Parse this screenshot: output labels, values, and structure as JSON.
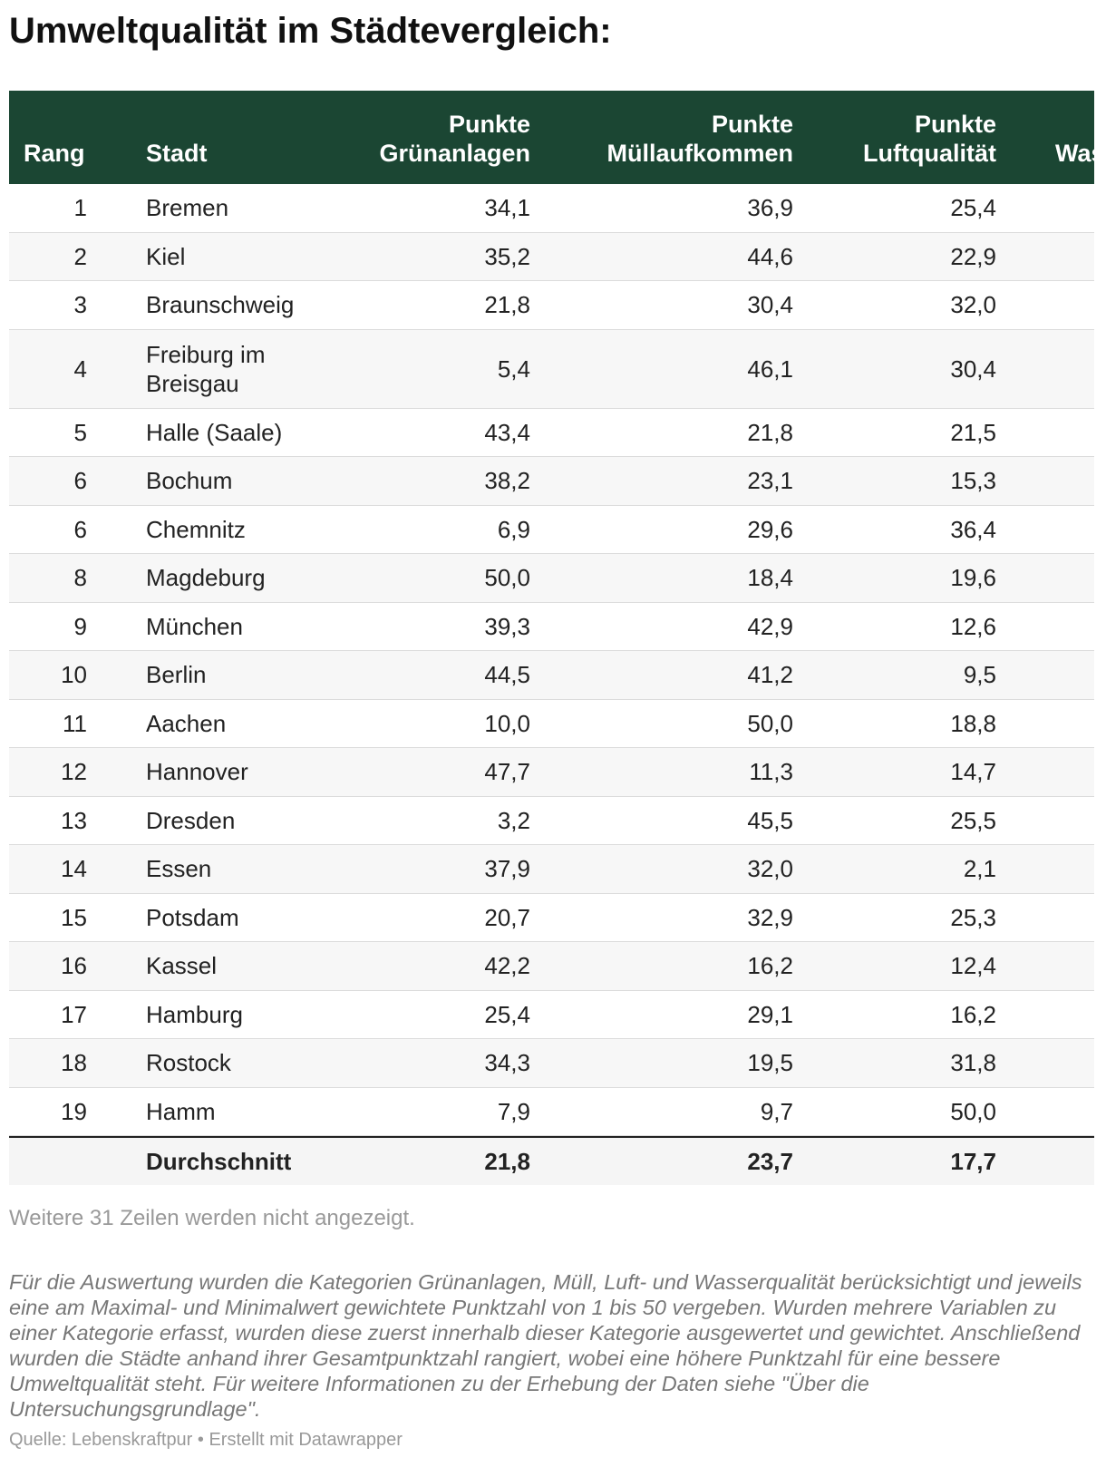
{
  "title": "Umweltqualität im Städtevergleich:",
  "table": {
    "headers": [
      "Rang",
      "Stadt",
      "Punkte Grünanlagen",
      "Punkte Müllaufkommen",
      "Punkte Luftqualität",
      "Was"
    ],
    "rows": [
      [
        "1",
        "Bremen",
        "34,1",
        "36,9",
        "25,4"
      ],
      [
        "2",
        "Kiel",
        "35,2",
        "44,6",
        "22,9"
      ],
      [
        "3",
        "Braunschweig",
        "21,8",
        "30,4",
        "32,0"
      ],
      [
        "4",
        "Freiburg im Breisgau",
        "5,4",
        "46,1",
        "30,4"
      ],
      [
        "5",
        "Halle (Saale)",
        "43,4",
        "21,8",
        "21,5"
      ],
      [
        "6",
        "Bochum",
        "38,2",
        "23,1",
        "15,3"
      ],
      [
        "6",
        "Chemnitz",
        "6,9",
        "29,6",
        "36,4"
      ],
      [
        "8",
        "Magdeburg",
        "50,0",
        "18,4",
        "19,6"
      ],
      [
        "9",
        "München",
        "39,3",
        "42,9",
        "12,6"
      ],
      [
        "10",
        "Berlin",
        "44,5",
        "41,2",
        "9,5"
      ],
      [
        "11",
        "Aachen",
        "10,0",
        "50,0",
        "18,8"
      ],
      [
        "12",
        "Hannover",
        "47,7",
        "11,3",
        "14,7"
      ],
      [
        "13",
        "Dresden",
        "3,2",
        "45,5",
        "25,5"
      ],
      [
        "14",
        "Essen",
        "37,9",
        "32,0",
        "2,1"
      ],
      [
        "15",
        "Potsdam",
        "20,7",
        "32,9",
        "25,3"
      ],
      [
        "16",
        "Kassel",
        "42,2",
        "16,2",
        "12,4"
      ],
      [
        "17",
        "Hamburg",
        "25,4",
        "29,1",
        "16,2"
      ],
      [
        "18",
        "Rostock",
        "34,3",
        "19,5",
        "31,8"
      ],
      [
        "19",
        "Hamm",
        "7,9",
        "9,7",
        "50,0"
      ]
    ],
    "total": {
      "label": "Durchschnitt",
      "values": [
        "21,8",
        "23,7",
        "17,7"
      ]
    }
  },
  "notes": {
    "hidden_rows": "Weitere 31 Zeilen werden nicht angezeigt.",
    "description": "Für die Auswertung wurden die Kategorien Grünanlagen, Müll, Luft- und Wasserqualität berücksichtigt und jeweils eine am Maximal- und Minimalwert gewichtete Punktzahl von 1 bis 50 vergeben. Wurden mehrere Variablen zu einer Kategorie erfasst, wurden diese zuerst innerhalb dieser Kategorie ausgewertet und gewichtet. Anschließend wurden die Städte anhand ihrer Gesamtpunktzahl rangiert, wobei eine höhere Punktzahl für eine bessere Umweltqualität steht. Für weitere Informationen zu der Erhebung der Daten siehe \"Über die Untersuchungsgrundlage\".",
    "source": "Quelle: Lebenskraftpur • Erstellt mit Datawrapper"
  }
}
